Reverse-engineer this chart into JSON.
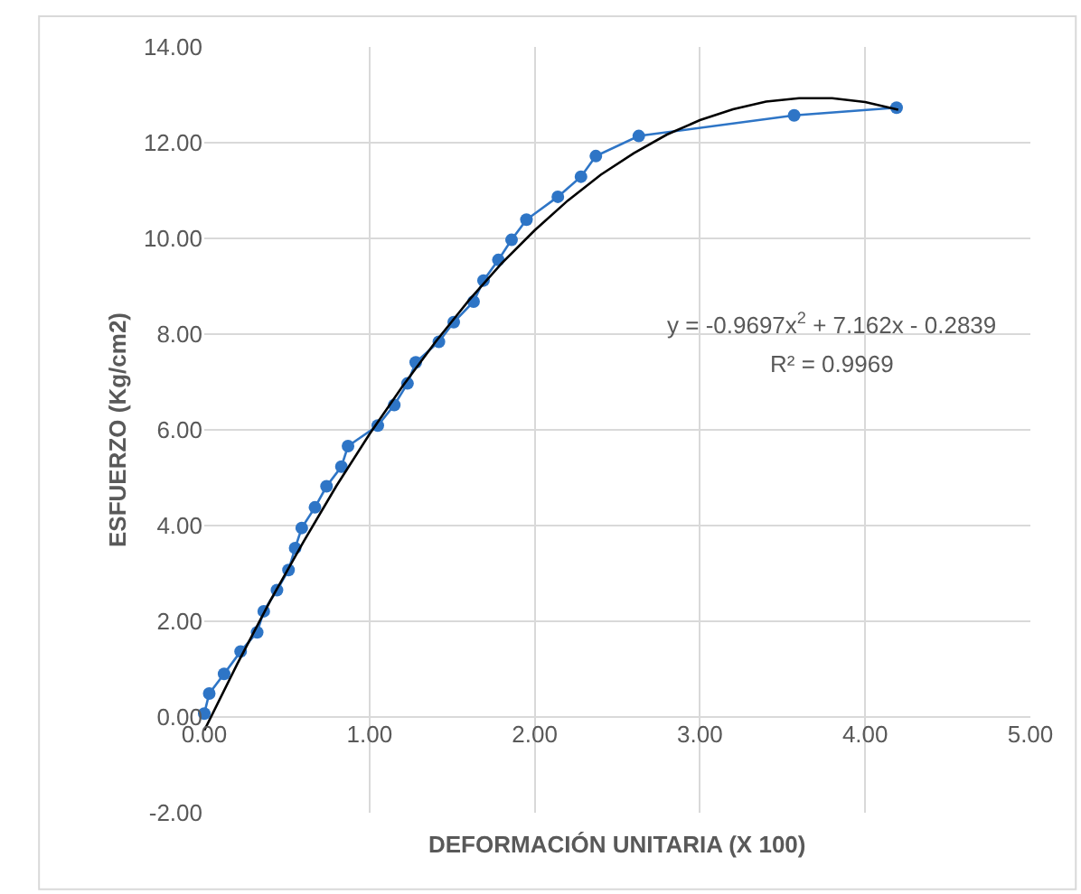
{
  "chart_data": {
    "type": "line",
    "xlabel": "DEFORMACIÓN UNITARIA (X 100)",
    "ylabel": "ESFUERZO (Kg/cm2)",
    "annotations": [
      "y = -0.9697x$^{2}$ + 7.162x - 0.2839",
      "R² = 0.9969"
    ],
    "series": [
      {
        "color": "#2e75c6",
        "marker": "circle",
        "x": [
          0.0,
          0.03,
          0.12,
          0.22,
          0.32,
          0.36,
          0.44,
          0.51,
          0.55,
          0.59,
          0.67,
          0.74,
          0.83,
          0.87,
          1.05,
          1.15,
          1.23,
          1.28,
          1.42,
          1.51,
          1.63,
          1.69,
          1.78,
          1.86,
          1.95,
          2.14,
          2.28,
          2.37,
          2.63,
          3.57,
          4.19
        ],
        "values": [
          0.07,
          0.49,
          0.9,
          1.37,
          1.77,
          2.21,
          2.65,
          3.07,
          3.53,
          3.95,
          4.38,
          4.82,
          5.23,
          5.66,
          6.09,
          6.52,
          6.97,
          7.41,
          7.84,
          8.25,
          8.68,
          9.12,
          9.55,
          9.97,
          10.39,
          10.87,
          11.29,
          11.72,
          12.14,
          12.57,
          12.73
        ]
      },
      {
        "color": "#000000",
        "marker": "none",
        "x": [
          0,
          0.2,
          0.4,
          0.6,
          0.8,
          1.0,
          1.2,
          1.4,
          1.6,
          1.8,
          2.0,
          2.2,
          2.4,
          2.6,
          2.8,
          3.0,
          3.2,
          3.4,
          3.6,
          3.8,
          4.0,
          4.2
        ],
        "values": [
          -0.28,
          1.11,
          2.43,
          3.66,
          4.83,
          5.91,
          6.91,
          7.84,
          8.7,
          9.48,
          10.17,
          10.79,
          11.33,
          11.78,
          12.17,
          12.47,
          12.7,
          12.86,
          12.93,
          12.93,
          12.85,
          12.69
        ]
      }
    ],
    "xlim": [
      0,
      5
    ],
    "xticks": [
      {
        "value": 0,
        "label": "0.00"
      },
      {
        "value": 1,
        "label": "1.00"
      },
      {
        "value": 2,
        "label": "2.00"
      },
      {
        "value": 3,
        "label": "3.00"
      },
      {
        "value": 4,
        "label": "4.00"
      },
      {
        "value": 5,
        "label": "5.00"
      }
    ],
    "ylim": [
      -2,
      14
    ],
    "yticks": [
      {
        "value": -2,
        "label": "-2.00"
      },
      {
        "value": 0,
        "label": "0.00"
      },
      {
        "value": 2,
        "label": "2.00"
      },
      {
        "value": 4,
        "label": "4.00"
      },
      {
        "value": 6,
        "label": "6.00"
      },
      {
        "value": 8,
        "label": "8.00"
      },
      {
        "value": 10,
        "label": "10.00"
      },
      {
        "value": 12,
        "label": "12.00"
      },
      {
        "value": 14,
        "label": "14.00"
      }
    ],
    "grid": true
  }
}
